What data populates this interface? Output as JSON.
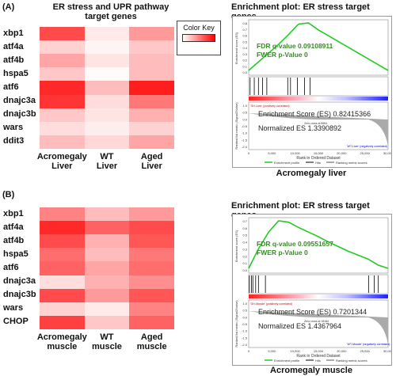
{
  "panelA": {
    "tag": "(A)",
    "title_line1": "ER stress and UPR pathway",
    "title_line2": "target genes",
    "color_key_label": "Color Key",
    "genes": [
      "xbp1",
      "atf4a",
      "atf4b",
      "hspa5",
      "atf6",
      "dnajc3a",
      "dnajc3b",
      "wars",
      "ddit3"
    ],
    "col_labels": [
      {
        "line1": "Acromegaly",
        "line2": "Liver"
      },
      {
        "line1": "WT",
        "line2": "Liver"
      },
      {
        "line1": "Aged",
        "line2": "Liver"
      }
    ],
    "heatmap": [
      [
        0.8,
        0.1,
        0.45
      ],
      [
        0.2,
        0.05,
        0.25
      ],
      [
        0.4,
        0.12,
        0.3
      ],
      [
        0.25,
        0.02,
        0.3
      ],
      [
        0.95,
        0.3,
        1.0
      ],
      [
        0.9,
        0.15,
        0.6
      ],
      [
        0.25,
        0.12,
        0.35
      ],
      [
        0.15,
        0.08,
        0.2
      ],
      [
        0.3,
        0.18,
        0.4
      ]
    ],
    "gsea": {
      "title": "Enrichment plot: ER stress target genes",
      "fdr": "FDR q-value  0.09108911",
      "fwer": "FWER p-Value 0",
      "es": "Enrichment Score (ES)  0.82415366",
      "nes": "Normalized ES  1.3390892",
      "axis_label": "Rank in Ordered Dataset",
      "pos_label": "'GH-Liver' (positively correlated)",
      "neg_label": "'WT-Liver' (negatively correlated)",
      "zero_cross": "Zero cross at 8654",
      "ylabel_es": "Enrichment score (ES)",
      "ylabel_rank": "Ranked list metric (Signal2Noise)",
      "x_ticks": [
        "0",
        "5,000",
        "10,000",
        "15,000",
        "20,000",
        "25,000",
        "30,000"
      ],
      "es_ticks": [
        "0.8",
        "0.7",
        "0.6",
        "0.5",
        "0.4",
        "0.3",
        "0.2",
        "0.1",
        "0.0"
      ],
      "rank_ticks": [
        "1.0",
        "0.5",
        "0.0",
        "-0.5",
        "-1.0",
        "-1.5",
        "-2.0"
      ],
      "legend": [
        "Enrichment profile",
        "Hits",
        "Ranking metric scores"
      ],
      "hits_fraction": [
        0.01,
        0.04,
        0.07,
        0.1,
        0.13,
        0.28,
        0.3,
        0.35,
        0.4,
        0.44
      ],
      "es_curve": [
        0,
        0.15,
        0.3,
        0.45,
        0.62,
        0.8,
        0.82,
        0.7,
        0.6,
        0.5,
        0.4,
        0.3,
        0.2,
        0.1,
        0.0
      ]
    },
    "caption": "Acromegaly liver"
  },
  "panelB": {
    "tag": "(B)",
    "genes": [
      "xbp1",
      "atf4a",
      "atf4b",
      "hspa5",
      "atf6",
      "dnajc3a",
      "dnajc3b",
      "wars",
      "CHOP"
    ],
    "col_labels": [
      {
        "line1": "Acromegaly",
        "line2": "muscle"
      },
      {
        "line1": "WT",
        "line2": "muscle"
      },
      {
        "line1": "Aged",
        "line2": "muscle"
      }
    ],
    "heatmap": [
      [
        0.55,
        0.3,
        0.45
      ],
      [
        0.95,
        0.7,
        0.8
      ],
      [
        0.8,
        0.35,
        0.75
      ],
      [
        0.65,
        0.3,
        0.6
      ],
      [
        0.7,
        0.4,
        0.65
      ],
      [
        0.15,
        0.35,
        0.5
      ],
      [
        0.8,
        0.45,
        0.75
      ],
      [
        0.2,
        0.1,
        0.55
      ],
      [
        0.85,
        0.25,
        0.7
      ]
    ],
    "gsea": {
      "title": "Enrichment plot: ER stress target genes",
      "fdr": "FDR q-value  0.09551657",
      "fwer": "FWER p-Value 0",
      "es": "Enrichment Score (ES)  0.7201344",
      "nes": "Normalized ES  1.4367964",
      "axis_label": "Rank in Ordered Dataset",
      "pos_label": "'GH-Muscle' (positively correlated)",
      "neg_label": "'WT-Muscle' (negatively correlated)",
      "zero_cross": "Zero cross at 18184",
      "ylabel_es": "Enrichment score (ES)",
      "ylabel_rank": "Ranked list metric (Signal2Noise)",
      "x_ticks": [
        "0",
        "5,000",
        "10,000",
        "15,000",
        "20,000",
        "25,000",
        "30,000"
      ],
      "es_ticks": [
        "0.7",
        "0.6",
        "0.5",
        "0.4",
        "0.3",
        "0.2",
        "0.1",
        "0.0"
      ],
      "rank_ticks": [
        "1.0",
        "0.5",
        "0.0",
        "-0.5",
        "-1.0",
        "-1.5",
        "-2.0"
      ],
      "legend": [
        "Enrichment profile",
        "Hits",
        "Ranking metric scores"
      ],
      "hits_fraction": [
        0.005,
        0.02,
        0.03,
        0.05,
        0.07,
        0.12,
        0.86,
        0.9,
        0.93
      ],
      "es_curve": [
        0,
        0.3,
        0.55,
        0.72,
        0.7,
        0.62,
        0.55,
        0.48,
        0.4,
        0.33,
        0.26,
        0.2,
        0.14,
        0.05,
        0.0
      ]
    },
    "caption": "Acromegaly muscle"
  }
}
